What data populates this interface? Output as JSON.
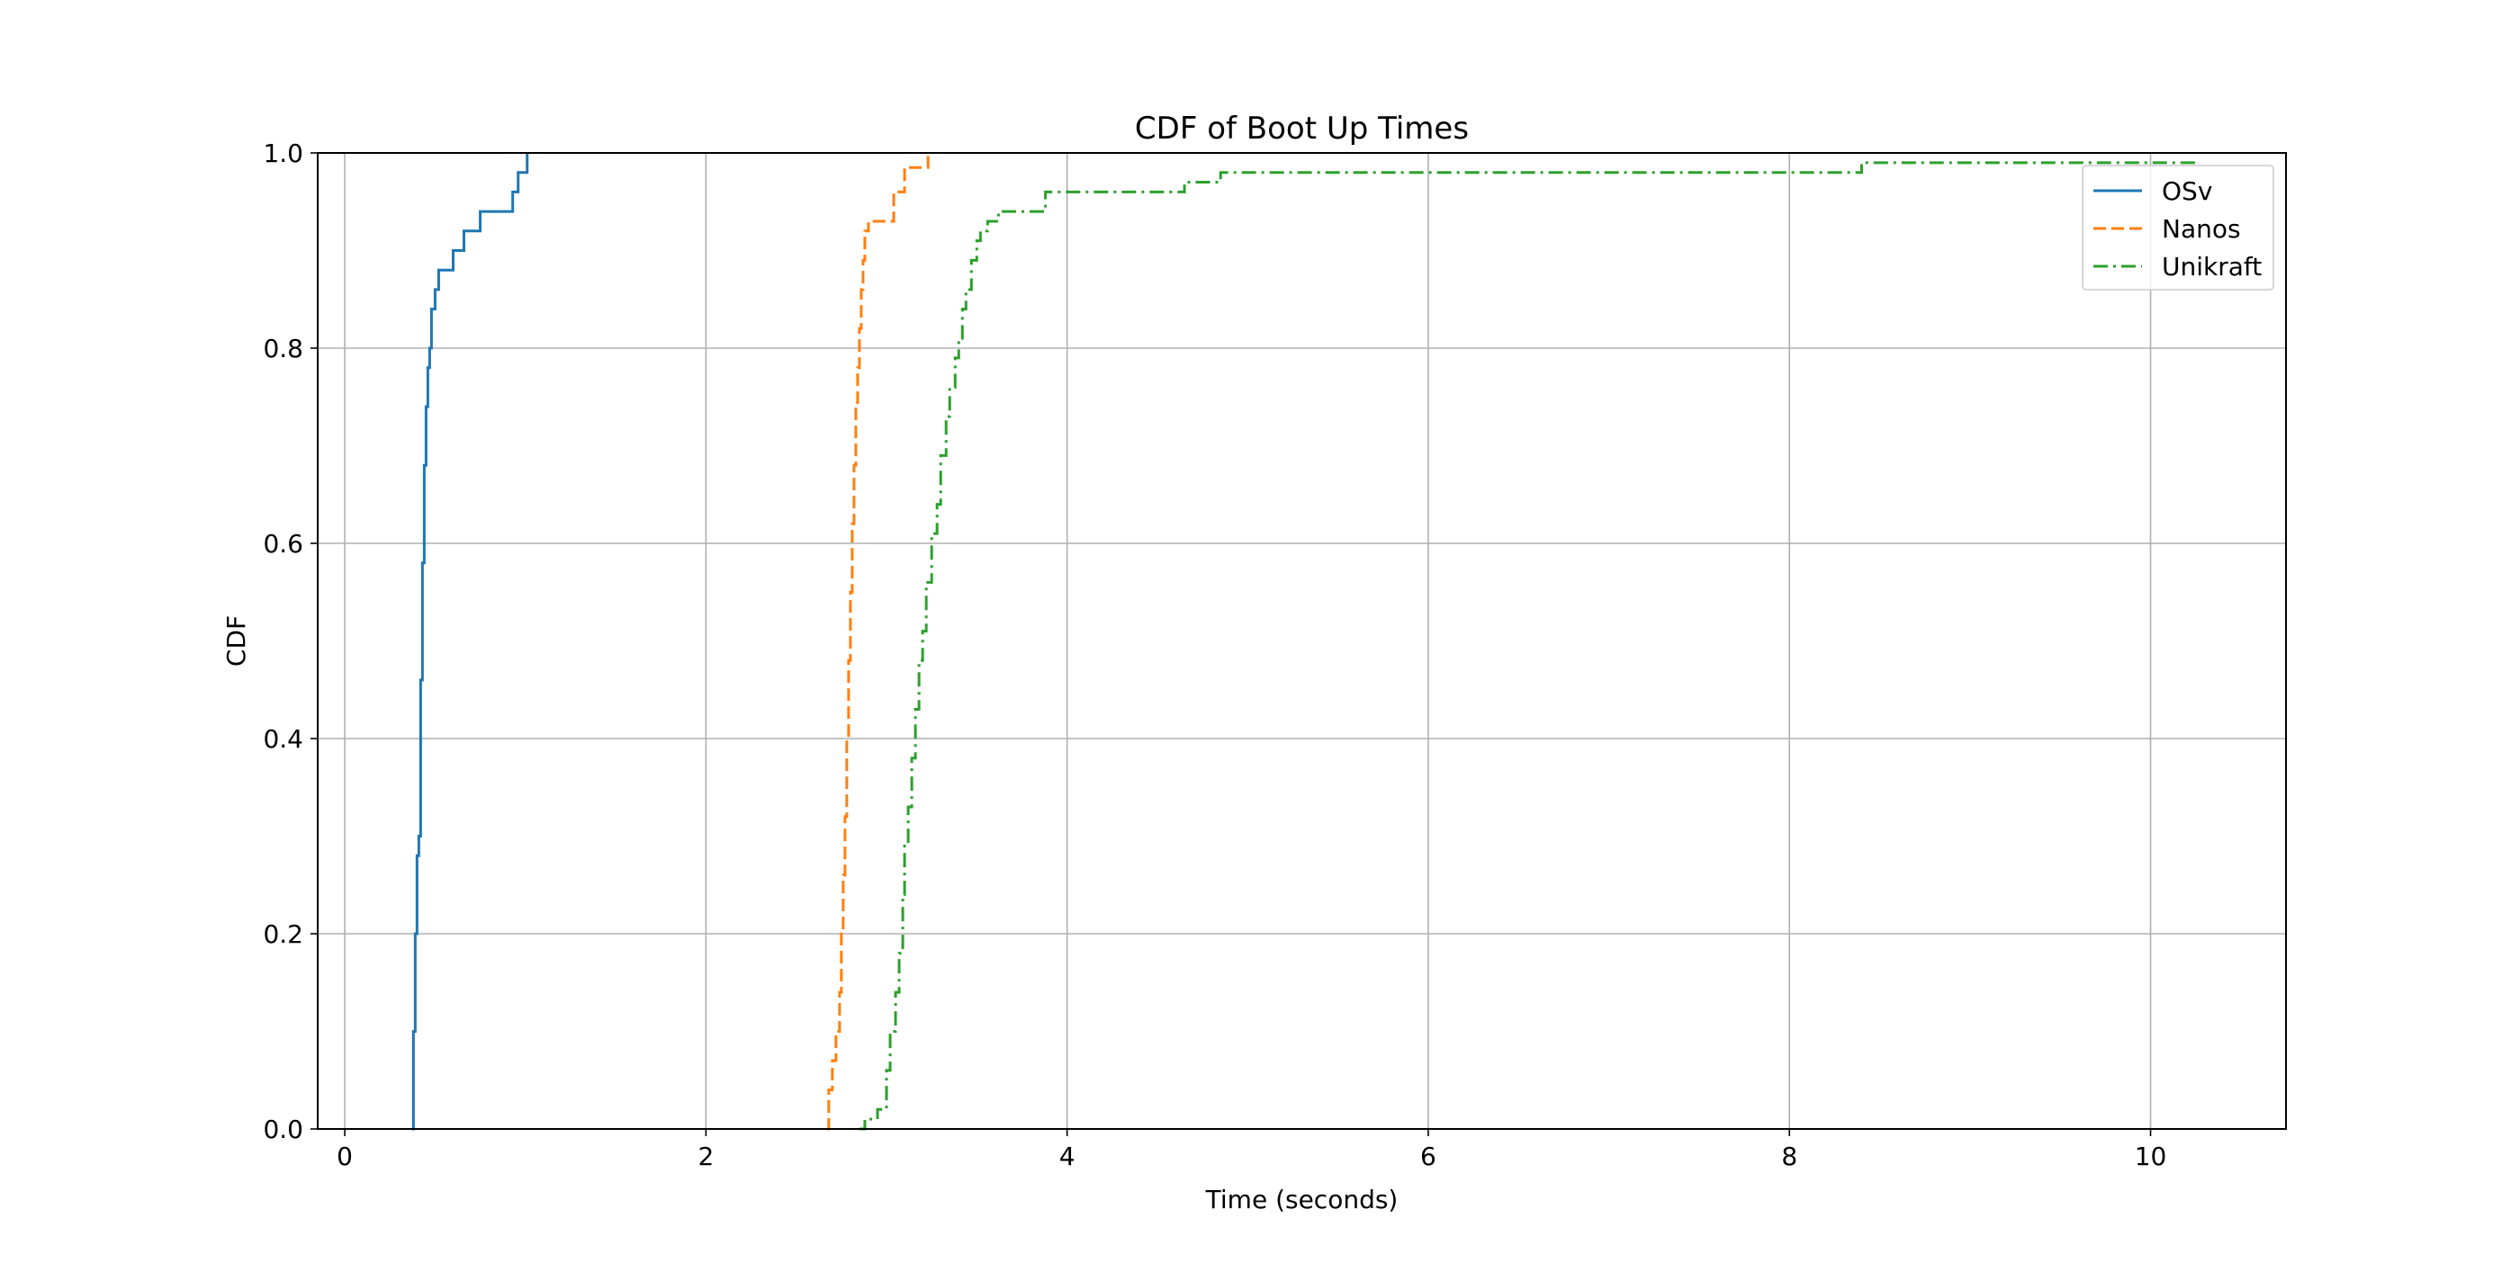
{
  "chart_data": {
    "type": "line",
    "step": true,
    "title": "CDF of Boot Up Times",
    "xlabel": "Time (seconds)",
    "ylabel": "CDF",
    "xlim": [
      -0.15,
      10.75
    ],
    "ylim": [
      0.0,
      1.0
    ],
    "xticks": [
      0,
      2,
      4,
      6,
      8,
      10
    ],
    "xtick_labels": [
      "0",
      "2",
      "4",
      "6",
      "8",
      "10"
    ],
    "yticks": [
      0.0,
      0.2,
      0.4,
      0.6,
      0.8,
      1.0
    ],
    "ytick_labels": [
      "0.0",
      "0.2",
      "0.4",
      "0.6",
      "0.8",
      "1.0"
    ],
    "grid": true,
    "legend_position": "top-right",
    "series": [
      {
        "name": "OSv",
        "color": "#1f77b4",
        "dash": "solid",
        "x": [
          0.37,
          0.38,
          0.39,
          0.4,
          0.41,
          0.42,
          0.42,
          0.43,
          0.43,
          0.44,
          0.44,
          0.45,
          0.46,
          0.47,
          0.48,
          0.5,
          0.52,
          0.55,
          0.6,
          0.66,
          0.75,
          0.93,
          0.96,
          1.01
        ],
        "y": [
          0.0,
          0.1,
          0.2,
          0.28,
          0.3,
          0.38,
          0.46,
          0.52,
          0.58,
          0.64,
          0.68,
          0.74,
          0.78,
          0.8,
          0.84,
          0.86,
          0.88,
          0.88,
          0.9,
          0.92,
          0.94,
          0.96,
          0.98,
          1.0
        ]
      },
      {
        "name": "Nanos",
        "color": "#ff7f0e",
        "dash": "dashed",
        "x": [
          2.67,
          2.68,
          2.7,
          2.72,
          2.74,
          2.75,
          2.76,
          2.77,
          2.78,
          2.79,
          2.8,
          2.81,
          2.82,
          2.83,
          2.84,
          2.85,
          2.86,
          2.87,
          2.88,
          2.9,
          2.97,
          3.04,
          3.1,
          3.17,
          3.23
        ],
        "y": [
          0.0,
          0.04,
          0.07,
          0.1,
          0.14,
          0.2,
          0.26,
          0.32,
          0.4,
          0.48,
          0.55,
          0.62,
          0.68,
          0.74,
          0.78,
          0.82,
          0.86,
          0.89,
          0.92,
          0.93,
          0.93,
          0.96,
          0.985,
          0.985,
          1.0
        ]
      },
      {
        "name": "Unikraft",
        "color": "#2ca02c",
        "dash": "dashdot",
        "x": [
          2.85,
          2.88,
          2.95,
          3.0,
          3.02,
          3.05,
          3.07,
          3.09,
          3.1,
          3.12,
          3.14,
          3.16,
          3.18,
          3.2,
          3.22,
          3.25,
          3.28,
          3.3,
          3.33,
          3.35,
          3.38,
          3.4,
          3.42,
          3.44,
          3.47,
          3.5,
          3.52,
          3.56,
          3.62,
          3.7,
          3.88,
          4.2,
          4.65,
          4.85,
          6.5,
          8.4,
          10.25
        ],
        "y": [
          0.0,
          0.01,
          0.02,
          0.06,
          0.1,
          0.14,
          0.18,
          0.24,
          0.29,
          0.33,
          0.38,
          0.43,
          0.48,
          0.51,
          0.56,
          0.61,
          0.64,
          0.69,
          0.73,
          0.76,
          0.79,
          0.81,
          0.84,
          0.86,
          0.89,
          0.91,
          0.92,
          0.93,
          0.94,
          0.94,
          0.96,
          0.96,
          0.97,
          0.98,
          0.98,
          0.99,
          0.99
        ]
      }
    ]
  }
}
